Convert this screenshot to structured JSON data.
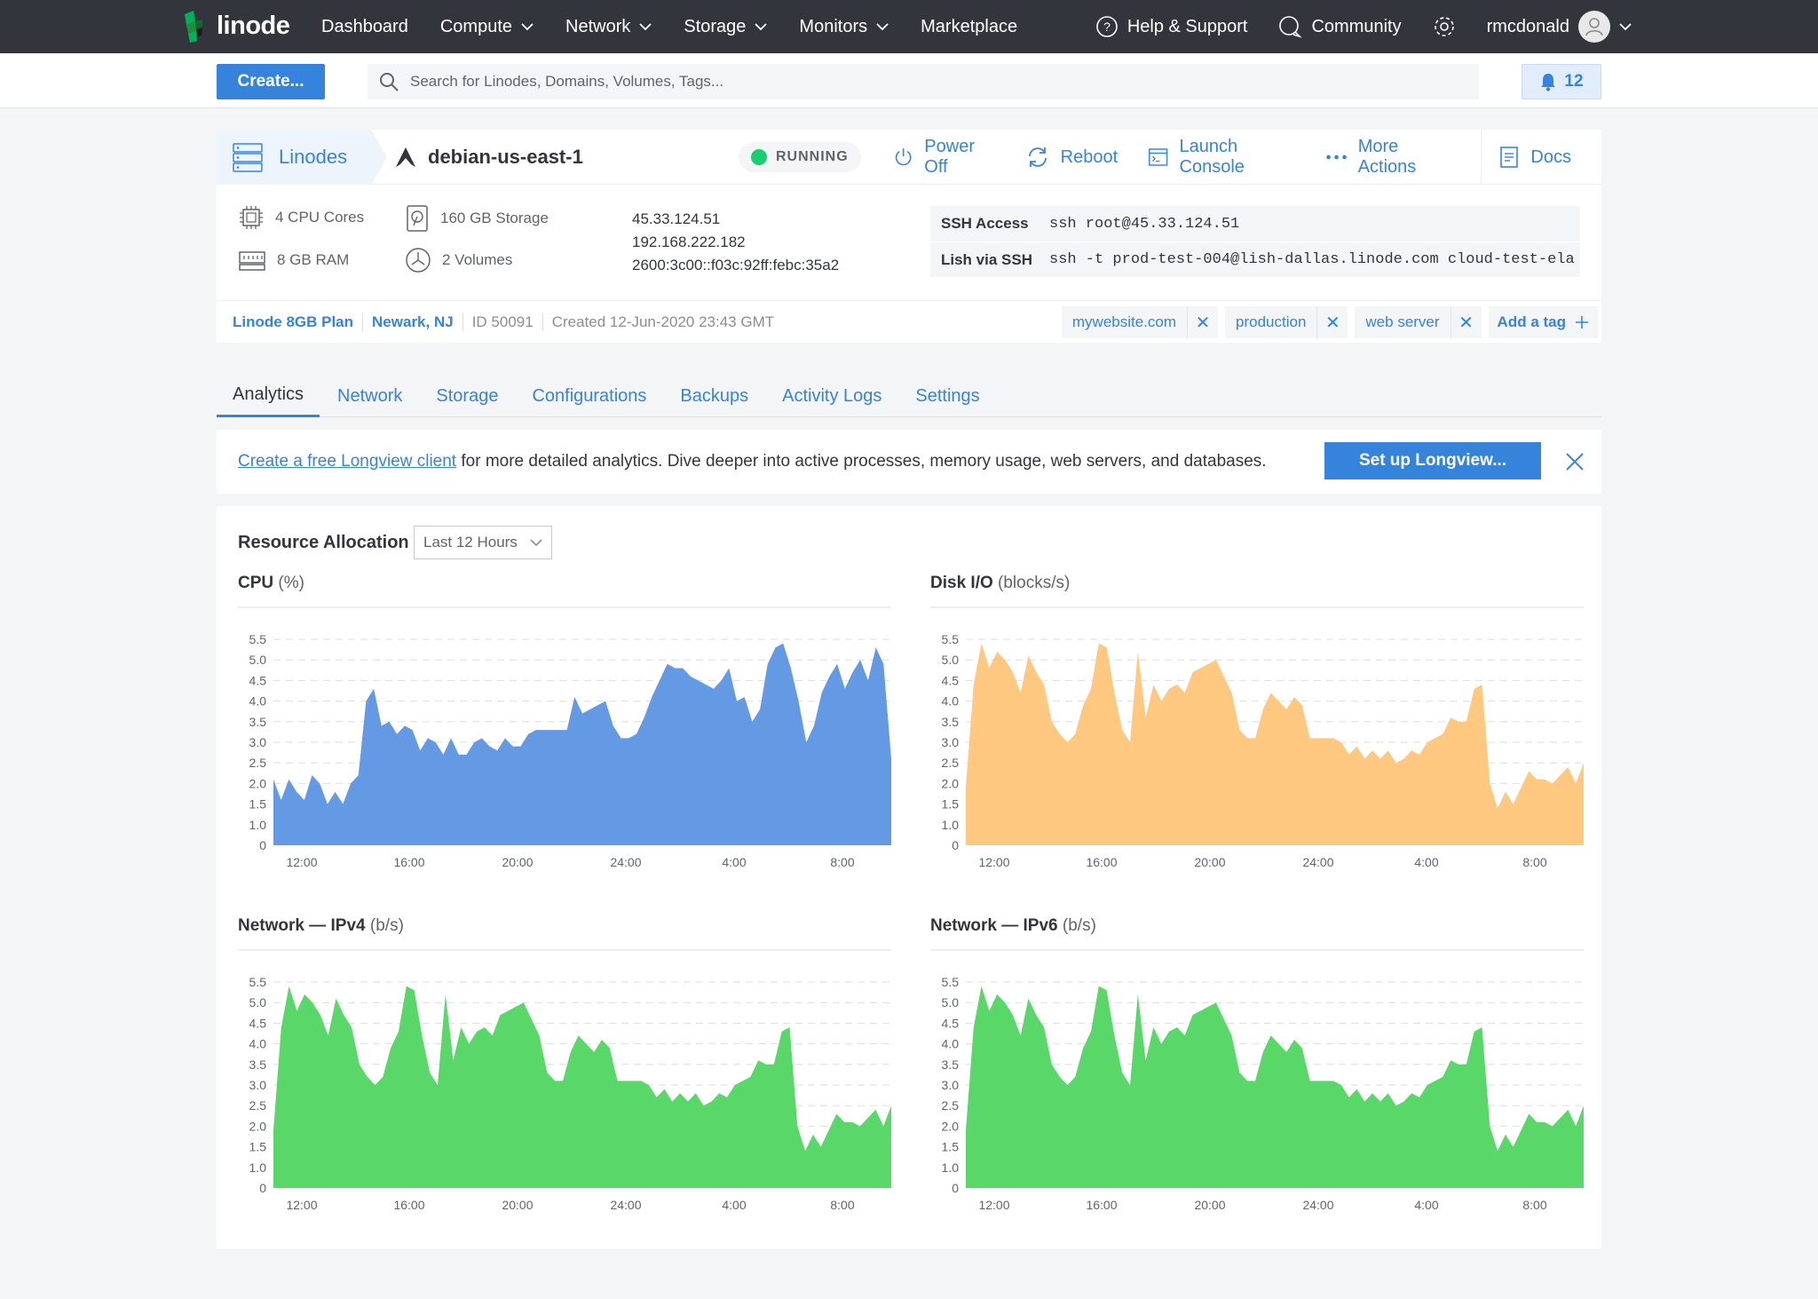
{
  "brand": {
    "name": "linode"
  },
  "topnav": {
    "items": [
      {
        "label": "Dashboard",
        "caret": false
      },
      {
        "label": "Compute",
        "caret": true
      },
      {
        "label": "Network",
        "caret": true
      },
      {
        "label": "Storage",
        "caret": true
      },
      {
        "label": "Monitors",
        "caret": true
      },
      {
        "label": "Marketplace",
        "caret": false
      }
    ],
    "help": "Help & Support",
    "community": "Community",
    "username": "rmcdonald"
  },
  "toolbar": {
    "create_label": "Create...",
    "search_placeholder": "Search for Linodes, Domains, Volumes, Tags...",
    "notifications": "12"
  },
  "linode": {
    "breadcrumb": "Linodes",
    "name": "debian-us-east-1",
    "status": "RUNNING",
    "actions": {
      "power_off": "Power Off",
      "reboot": "Reboot",
      "console": "Launch Console",
      "more": "More Actions",
      "docs": "Docs"
    },
    "specs": {
      "cpu": "4 CPU Cores",
      "ram": "8 GB RAM",
      "storage": "160 GB Storage",
      "volumes": "2 Volumes"
    },
    "ips": [
      "45.33.124.51",
      "192.168.222.182",
      "2600:3c00::f03c:92ff:febc:35a2"
    ],
    "ssh": {
      "ssh_label": "SSH Access",
      "ssh_value": "ssh root@45.33.124.51",
      "lish_label": "Lish via SSH",
      "lish_value": "ssh -t prod-test-004@lish-dallas.linode.com cloud-test-ela"
    },
    "meta": {
      "plan": "Linode 8GB Plan",
      "region": "Newark, NJ",
      "id": "ID 50091",
      "created": "Created 12-Jun-2020 23:43 GMT"
    },
    "tags": [
      "mywebsite.com",
      "production",
      "web server"
    ],
    "add_tag": "Add a tag"
  },
  "tabs": [
    "Analytics",
    "Network",
    "Storage",
    "Configurations",
    "Backups",
    "Activity Logs",
    "Settings"
  ],
  "active_tab": "Analytics",
  "banner": {
    "link": "Create a free Longview client",
    "text": " for more detailed analytics. Dive deeper into active processes, memory usage, web servers, and databases.",
    "button": "Set up Longview..."
  },
  "analytics": {
    "title": "Resource Allocation",
    "range": "Last 12 Hours"
  },
  "colors": {
    "accent": "#3683dc",
    "running": "#17cf73",
    "cpu": "#6499e4",
    "disk": "#ffc880",
    "net": "#59d869"
  },
  "chart_data": [
    {
      "type": "area",
      "title": "CPU",
      "unit": "(%)",
      "color": "#6499e4",
      "yticks": [
        "5.5",
        "5.0",
        "4.5",
        "4.0",
        "3.5",
        "3.0",
        "2.5",
        "2.0",
        "1.5",
        "1.0",
        "0"
      ],
      "ylim": [
        0,
        5.5
      ],
      "xticks": [
        "12:00",
        "16:00",
        "20:00",
        "24:00",
        "4:00",
        "8:00"
      ],
      "values": [
        2.1,
        1.6,
        2.1,
        1.8,
        1.6,
        2.2,
        2.0,
        1.5,
        1.8,
        1.5,
        2.0,
        2.2,
        4.0,
        4.3,
        3.4,
        3.5,
        3.2,
        3.4,
        3.3,
        2.8,
        3.1,
        3.0,
        2.7,
        3.1,
        2.7,
        2.7,
        3.0,
        3.1,
        2.9,
        2.8,
        3.1,
        2.9,
        2.9,
        3.2,
        3.3,
        3.3,
        3.3,
        3.3,
        3.3,
        4.1,
        3.7,
        3.8,
        3.9,
        4.0,
        3.4,
        3.1,
        3.1,
        3.2,
        3.6,
        4.1,
        4.5,
        4.9,
        4.8,
        4.8,
        4.6,
        4.5,
        4.4,
        4.3,
        4.5,
        4.8,
        4.0,
        4.1,
        3.5,
        3.8,
        4.9,
        5.3,
        5.4,
        4.8,
        4.0,
        3.0,
        3.4,
        4.2,
        4.6,
        4.9,
        4.3,
        4.7,
        5.0,
        4.5,
        5.3,
        4.9,
        2.6
      ],
      "data_names": "cpu"
    },
    {
      "type": "area",
      "title": "Disk I/O",
      "unit": "(blocks/s)",
      "color": "#ffc880",
      "yticks": [
        "5.5",
        "5.0",
        "4.5",
        "4.0",
        "3.5",
        "3.0",
        "2.5",
        "2.0",
        "1.5",
        "1.0",
        "0"
      ],
      "ylim": [
        0,
        5.5
      ],
      "xticks": [
        "12:00",
        "16:00",
        "20:00",
        "24:00",
        "4:00",
        "8:00"
      ],
      "values": [
        1.9,
        4.4,
        5.4,
        4.8,
        5.2,
        5.0,
        4.7,
        4.2,
        5.1,
        4.7,
        4.4,
        3.5,
        3.2,
        3.0,
        3.2,
        3.9,
        4.3,
        5.4,
        5.3,
        4.2,
        3.3,
        3.0,
        5.2,
        3.6,
        4.4,
        4.0,
        4.3,
        4.4,
        4.2,
        4.7,
        4.8,
        4.9,
        5.0,
        4.6,
        4.2,
        3.3,
        3.1,
        3.1,
        3.8,
        4.2,
        4.0,
        3.8,
        4.1,
        3.9,
        3.1,
        3.1,
        3.1,
        3.1,
        3.0,
        2.7,
        2.9,
        2.6,
        2.8,
        2.6,
        2.8,
        2.5,
        2.6,
        2.8,
        2.7,
        3.0,
        3.1,
        3.2,
        3.6,
        3.5,
        3.5,
        4.3,
        4.4,
        2.0,
        1.4,
        1.8,
        1.5,
        1.9,
        2.3,
        2.1,
        2.1,
        2.0,
        2.2,
        2.4,
        2.0,
        2.5
      ],
      "data_names": "disk"
    },
    {
      "type": "area",
      "title": "Network — IPv4",
      "unit": "(b/s)",
      "color": "#59d869",
      "yticks": [
        "5.5",
        "5.0",
        "4.5",
        "4.0",
        "3.5",
        "3.0",
        "2.5",
        "2.0",
        "1.5",
        "1.0",
        "0"
      ],
      "ylim": [
        0,
        5.5
      ],
      "xticks": [
        "12:00",
        "16:00",
        "20:00",
        "24:00",
        "4:00",
        "8:00"
      ],
      "values": [
        1.9,
        4.4,
        5.4,
        4.8,
        5.2,
        5.0,
        4.7,
        4.2,
        5.1,
        4.7,
        4.4,
        3.5,
        3.2,
        3.0,
        3.2,
        3.9,
        4.3,
        5.4,
        5.3,
        4.2,
        3.3,
        3.0,
        5.2,
        3.6,
        4.4,
        4.0,
        4.3,
        4.4,
        4.2,
        4.7,
        4.8,
        4.9,
        5.0,
        4.6,
        4.2,
        3.3,
        3.1,
        3.1,
        3.8,
        4.2,
        4.0,
        3.8,
        4.1,
        3.9,
        3.1,
        3.1,
        3.1,
        3.1,
        3.0,
        2.7,
        2.9,
        2.6,
        2.8,
        2.6,
        2.8,
        2.5,
        2.6,
        2.8,
        2.7,
        3.0,
        3.1,
        3.2,
        3.6,
        3.5,
        3.5,
        4.3,
        4.4,
        2.0,
        1.4,
        1.8,
        1.5,
        1.9,
        2.3,
        2.1,
        2.1,
        2.0,
        2.2,
        2.4,
        2.0,
        2.5
      ],
      "data_names": "ipv4"
    },
    {
      "type": "area",
      "title": "Network — IPv6",
      "unit": "(b/s)",
      "color": "#59d869",
      "yticks": [
        "5.5",
        "5.0",
        "4.5",
        "4.0",
        "3.5",
        "3.0",
        "2.5",
        "2.0",
        "1.5",
        "1.0",
        "0"
      ],
      "ylim": [
        0,
        5.5
      ],
      "xticks": [
        "12:00",
        "16:00",
        "20:00",
        "24:00",
        "4:00",
        "8:00"
      ],
      "values": [
        1.9,
        4.4,
        5.4,
        4.8,
        5.2,
        5.0,
        4.7,
        4.2,
        5.1,
        4.7,
        4.4,
        3.5,
        3.2,
        3.0,
        3.2,
        3.9,
        4.3,
        5.4,
        5.3,
        4.2,
        3.3,
        3.0,
        5.2,
        3.6,
        4.4,
        4.0,
        4.3,
        4.4,
        4.2,
        4.7,
        4.8,
        4.9,
        5.0,
        4.6,
        4.2,
        3.3,
        3.1,
        3.1,
        3.8,
        4.2,
        4.0,
        3.8,
        4.1,
        3.9,
        3.1,
        3.1,
        3.1,
        3.1,
        3.0,
        2.7,
        2.9,
        2.6,
        2.8,
        2.6,
        2.8,
        2.5,
        2.6,
        2.8,
        2.7,
        3.0,
        3.1,
        3.2,
        3.6,
        3.5,
        3.5,
        4.3,
        4.4,
        2.0,
        1.4,
        1.8,
        1.5,
        1.9,
        2.3,
        2.1,
        2.1,
        2.0,
        2.2,
        2.4,
        2.0,
        2.5
      ],
      "data_names": "ipv6"
    }
  ]
}
